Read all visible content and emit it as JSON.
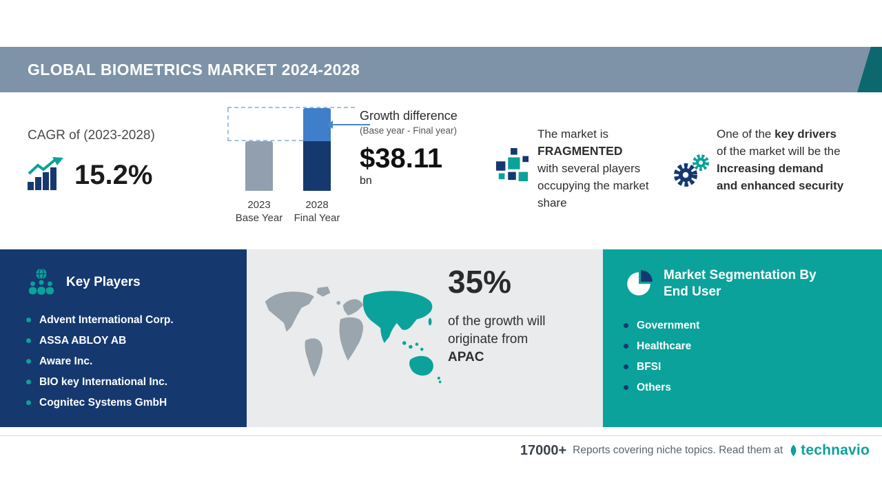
{
  "header": {
    "title": "GLOBAL BIOMETRICS MARKET 2024-2028"
  },
  "cagr": {
    "label": "CAGR of (2023-2028)",
    "value": "15.2%"
  },
  "growth_difference": {
    "title": "Growth difference",
    "subtitle": "(Base year - Final year)",
    "value": "$38.11",
    "unit": "bn"
  },
  "chart_data": {
    "type": "bar",
    "title": "Growth difference (Base year - Final year): $38.11 bn",
    "categories": [
      "2023",
      "2028"
    ],
    "category_sublabels": [
      "Base Year",
      "Final Year"
    ],
    "series": [
      {
        "name": "Market size (axis unlabeled, relative bar heights)",
        "values": [
          60,
          100
        ]
      }
    ],
    "annotations": [
      "CAGR of (2023-2028): 15.2%",
      "Growth difference (Base year - Final year): $38.11 bn"
    ],
    "ylim": [
      0,
      100
    ],
    "grid": false,
    "legend": false,
    "colors": {
      "base_bar": "#919fae",
      "final_bar_base": "#15386f",
      "final_bar_growth": "#3f7ec9"
    }
  },
  "market_structure": {
    "pre": "The market is",
    "highlight": "FRAGMENTED",
    "post": "with several players occupying the market share"
  },
  "key_driver": {
    "pre": "One of the ",
    "bold1": "key drivers",
    "mid": " of the market will be the ",
    "bold2": "Increasing demand and enhanced security"
  },
  "key_players": {
    "title": "Key Players",
    "items": [
      "Advent International Corp.",
      "ASSA ABLOY AB",
      "Aware Inc.",
      "BIO key International Inc.",
      "Cognitec Systems GmbH"
    ]
  },
  "regional_growth": {
    "percent": "35%",
    "text1": "of the growth will",
    "text2": "originate from",
    "region": "APAC"
  },
  "segmentation": {
    "title": "Market Segmentation By End User",
    "items": [
      "Government",
      "Healthcare",
      "BFSI",
      "Others"
    ]
  },
  "footer": {
    "count": "17000+",
    "text": "Reports covering niche topics. Read them at",
    "brand": "technavio"
  },
  "colors": {
    "teal_accent": "#0aa29a",
    "navy": "#15386f",
    "header_slate": "#7e93a7",
    "header_corner_teal": "#0c686e",
    "map_panel_gray": "#e9ebec",
    "base_bar_gray": "#919fae",
    "growth_blue": "#3f7ec9"
  },
  "icons": {
    "cagr": "bar-chart-rising-arrow-icon",
    "market_structure": "fragmented-squares-icon",
    "key_driver": "gears-icon",
    "key_players": "globe-people-icon",
    "segmentation": "pie-chart-icon",
    "brand": "technavio-leaf-icon"
  }
}
